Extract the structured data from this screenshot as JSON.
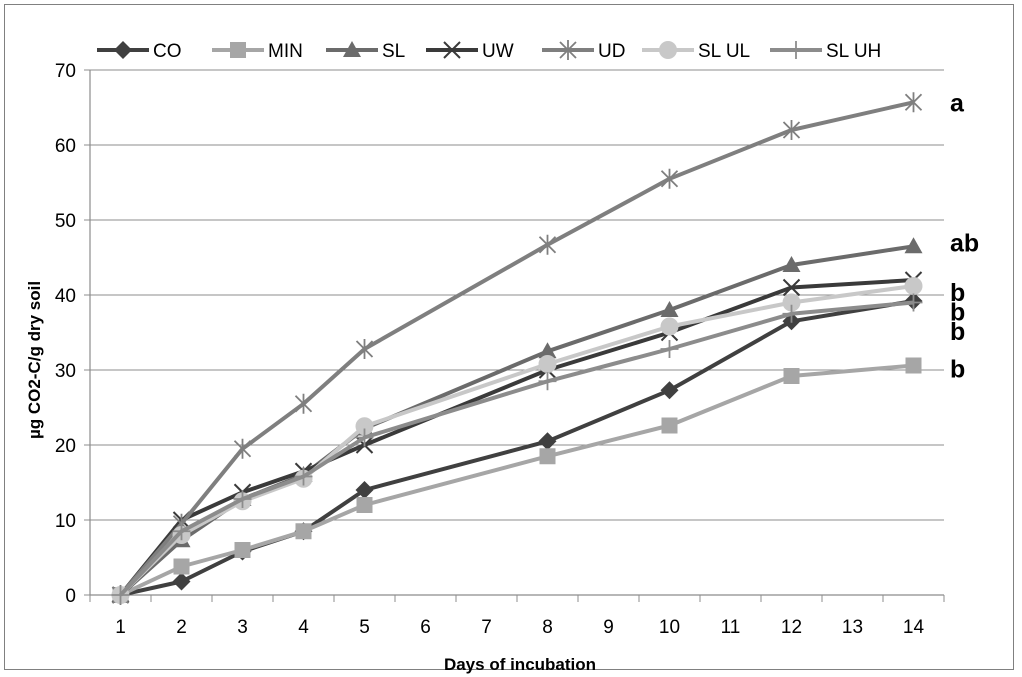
{
  "chart_data": {
    "type": "line",
    "xlabel": "Days of incubation",
    "ylabel": "µg CO2-C/g dry soil",
    "ylim": [
      0,
      70
    ],
    "yticks": [
      0,
      10,
      20,
      30,
      40,
      50,
      60,
      70
    ],
    "categories": [
      "1",
      "2",
      "3",
      "4",
      "5",
      "6",
      "7",
      "8",
      "9",
      "10",
      "11",
      "12",
      "13",
      "14"
    ],
    "grid": "horizontal",
    "legend_position": "top",
    "series": [
      {
        "name": "CO",
        "color": "#404040",
        "marker": "diamond",
        "x": [
          1,
          2,
          3,
          4,
          5,
          8,
          10,
          12,
          14
        ],
        "values": [
          0,
          1.8,
          5.8,
          8.5,
          14,
          20.5,
          27.3,
          36.5,
          39.2
        ]
      },
      {
        "name": "MIN",
        "color": "#a6a6a6",
        "marker": "square",
        "x": [
          1,
          2,
          3,
          4,
          5,
          8,
          10,
          12,
          14
        ],
        "values": [
          0,
          3.8,
          6,
          8.5,
          12,
          18.5,
          22.6,
          29.2,
          30.6
        ]
      },
      {
        "name": "SL",
        "color": "#6b6b6b",
        "marker": "triangle",
        "x": [
          1,
          2,
          3,
          4,
          5,
          8,
          10,
          12,
          14
        ],
        "values": [
          0,
          7.3,
          12.8,
          16,
          22.2,
          32.5,
          38,
          44,
          46.5
        ]
      },
      {
        "name": "UW",
        "color": "#3a3a3a",
        "marker": "x",
        "x": [
          1,
          2,
          3,
          4,
          5,
          8,
          10,
          12,
          14
        ],
        "values": [
          0,
          10,
          13.7,
          16.5,
          20,
          30,
          35,
          41,
          42
        ]
      },
      {
        "name": "UD",
        "color": "#7f7f7f",
        "marker": "star",
        "x": [
          1,
          2,
          3,
          4,
          5,
          8,
          10,
          12,
          14
        ],
        "values": [
          0,
          9.5,
          19.5,
          25.5,
          32.8,
          46.7,
          55.5,
          62,
          65.7
        ]
      },
      {
        "name": "SL UL",
        "color": "#c8c8c8",
        "marker": "circle",
        "x": [
          1,
          2,
          3,
          4,
          5,
          8,
          10,
          12,
          14
        ],
        "values": [
          0,
          8,
          12.5,
          15.5,
          22.5,
          30.8,
          35.8,
          39,
          41.2
        ]
      },
      {
        "name": "SL UH",
        "color": "#8c8c8c",
        "marker": "plus",
        "x": [
          1,
          2,
          3,
          4,
          5,
          8,
          10,
          12,
          14
        ],
        "values": [
          0,
          8.5,
          12.8,
          15.8,
          21,
          28.5,
          32.8,
          37.5,
          39
        ]
      }
    ],
    "annotations": [
      {
        "text": "a",
        "y": 65.7
      },
      {
        "text": "ab",
        "y": 47
      },
      {
        "text": "b",
        "y": 40.4
      },
      {
        "text": "b",
        "y": 37.8
      },
      {
        "text": "b",
        "y": 35.2
      },
      {
        "text": "b",
        "y": 30.2
      }
    ]
  }
}
